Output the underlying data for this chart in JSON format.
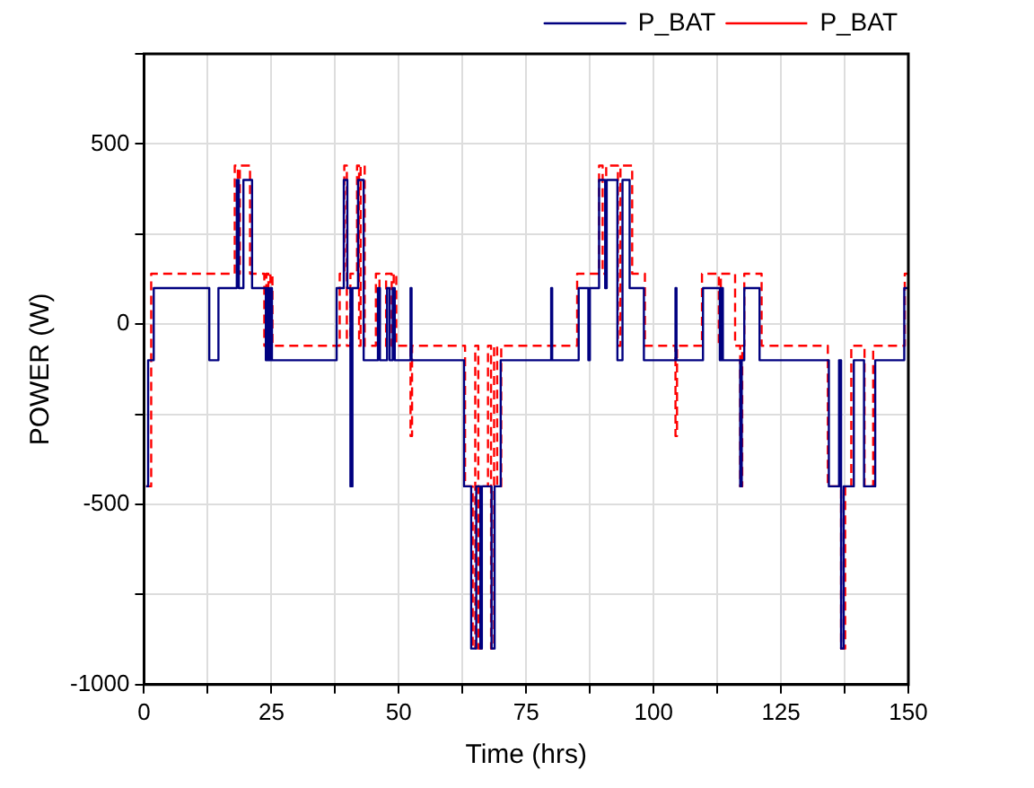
{
  "chart_data": {
    "type": "step",
    "xlabel": "Time (hrs)",
    "ylabel": "POWER (W)",
    "xlim": [
      0,
      150
    ],
    "ylim": [
      -1000,
      750
    ],
    "xticks": [
      0,
      {
        "value": 12.5,
        "label": null
      },
      25,
      {
        "value": 37.5,
        "label": null
      },
      50,
      {
        "value": 62.5,
        "label": null
      },
      75,
      {
        "value": 87.5,
        "label": null
      },
      100,
      {
        "value": 112.5,
        "label": null
      },
      125,
      {
        "value": 137.5,
        "label": null
      },
      150
    ],
    "yticks": [
      -1000,
      {
        "value": -750,
        "label": null
      },
      -500,
      {
        "value": -250,
        "label": null
      },
      0,
      {
        "value": 250,
        "label": null
      },
      500,
      {
        "value": 750,
        "label": null
      }
    ],
    "grid": true,
    "legend": "top right",
    "series": [
      {
        "name": "P_BAT",
        "color": "#000080",
        "line_style": "solid",
        "x": [
          0.4,
          0.8,
          1.9,
          12.8,
          14.6,
          18.2,
          18.6,
          19.5,
          21.2,
          23.9,
          24.2,
          24.5,
          24.8,
          25.1,
          37.8,
          39.2,
          39.9,
          40.5,
          40.9,
          42,
          43.1,
          45.9,
          46.3,
          47.7,
          48.2,
          48.8,
          49.2,
          52.3,
          52.5,
          62.8,
          64.2,
          65.2,
          66,
          66.3,
          68.2,
          68.8,
          70,
          79.9,
          80.1,
          85.3,
          87.2,
          87.5,
          89.3,
          90.5,
          90.8,
          92.9,
          93.9,
          95.3,
          98.1,
          104.3,
          104.5,
          109.7,
          113,
          113.3,
          113.6,
          117,
          117.3,
          117.8,
          120.8,
          134.4,
          136.4,
          136.8,
          137.3,
          139.3,
          141.3,
          143.5,
          149.2,
          150
        ],
        "values": [
          -450,
          -100,
          100,
          -100,
          100,
          400,
          100,
          400,
          100,
          -100,
          100,
          -100,
          100,
          -100,
          100,
          400,
          100,
          -450,
          100,
          400,
          -100,
          100,
          -100,
          100,
          -100,
          100,
          -100,
          100,
          -100,
          -450,
          -900,
          -450,
          -900,
          -450,
          -900,
          -450,
          -100,
          100,
          -100,
          100,
          -100,
          100,
          400,
          100,
          400,
          -100,
          400,
          100,
          -100,
          100,
          -100,
          100,
          -100,
          100,
          -100,
          -450,
          -100,
          100,
          -100,
          -450,
          -100,
          -900,
          -450,
          -100,
          -450,
          -100,
          100,
          100
        ]
      },
      {
        "name": "P_BAT",
        "color": "#ff0000",
        "line_style": "dashed",
        "x": [
          0.4,
          1.4,
          17.8,
          18.4,
          18.8,
          20.8,
          23.6,
          24,
          24.4,
          24.8,
          25.2,
          38.4,
          39.3,
          39.8,
          40.5,
          41.8,
          42.2,
          42.5,
          43.3,
          45.5,
          46.2,
          47.5,
          48.6,
          49,
          49.5,
          52.3,
          52.6,
          63,
          64.5,
          65,
          65.6,
          66.2,
          67.5,
          68.1,
          68.7,
          69.3,
          70.1,
          85,
          89.3,
          90,
          90.7,
          93,
          93.5,
          95.8,
          98.3,
          104.3,
          104.6,
          109.5,
          112.8,
          113.2,
          116,
          117,
          117.4,
          117.8,
          121.2,
          134.2,
          136.8,
          137.6,
          138.8,
          141.4,
          143.1,
          149.3,
          150
        ],
        "values": [
          -450,
          140,
          440,
          140,
          440,
          140,
          -60,
          140,
          -60,
          140,
          -60,
          140,
          440,
          -60,
          140,
          440,
          -60,
          440,
          -60,
          140,
          -60,
          140,
          -60,
          140,
          -60,
          -310,
          -60,
          -450,
          -900,
          -60,
          -900,
          -450,
          -60,
          -900,
          -60,
          -450,
          -60,
          140,
          440,
          140,
          440,
          -60,
          440,
          140,
          -60,
          -310,
          -60,
          140,
          -60,
          140,
          -60,
          -450,
          -60,
          140,
          -60,
          -450,
          -900,
          -450,
          -60,
          -450,
          -60,
          140,
          140
        ]
      }
    ]
  }
}
